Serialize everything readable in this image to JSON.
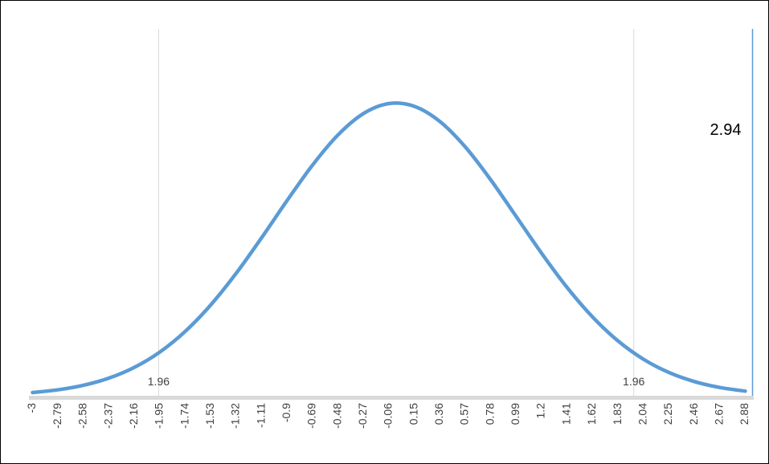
{
  "chart_data": {
    "type": "line",
    "x": [
      -3,
      -2.79,
      -2.58,
      -2.37,
      -2.16,
      -1.95,
      -1.74,
      -1.53,
      -1.32,
      -1.11,
      -0.9,
      -0.69,
      -0.48,
      -0.27,
      -0.06,
      0.15,
      0.36,
      0.57,
      0.78,
      0.99,
      1.2,
      1.41,
      1.62,
      1.83,
      2.04,
      2.25,
      2.46,
      2.67,
      2.88
    ],
    "series": [
      {
        "color": "#5b9bd5",
        "values": [
          0.00443,
          0.00814,
          0.01431,
          0.02406,
          0.03871,
          0.05959,
          0.0878,
          0.12377,
          0.16694,
          0.21545,
          0.26609,
          0.31444,
          0.35553,
          0.38466,
          0.39822,
          0.39448,
          0.37391,
          0.33913,
          0.29432,
          0.2444,
          0.19419,
          0.14763,
          0.10741,
          0.07477,
          0.0498,
          0.03174,
          0.01936,
          0.0113,
          0.00631
        ]
      }
    ],
    "xlim": [
      -3.03,
      2.95
    ],
    "ylim": [
      0,
      0.5
    ],
    "annotations": [
      {
        "x": -1.96,
        "label": "1.96",
        "color": "#d9d9d9"
      },
      {
        "x": 1.96,
        "label": "1.96",
        "color": "#d9d9d9"
      },
      {
        "x": 2.94,
        "label": "2.94",
        "color": "#5b9bd5"
      }
    ]
  }
}
